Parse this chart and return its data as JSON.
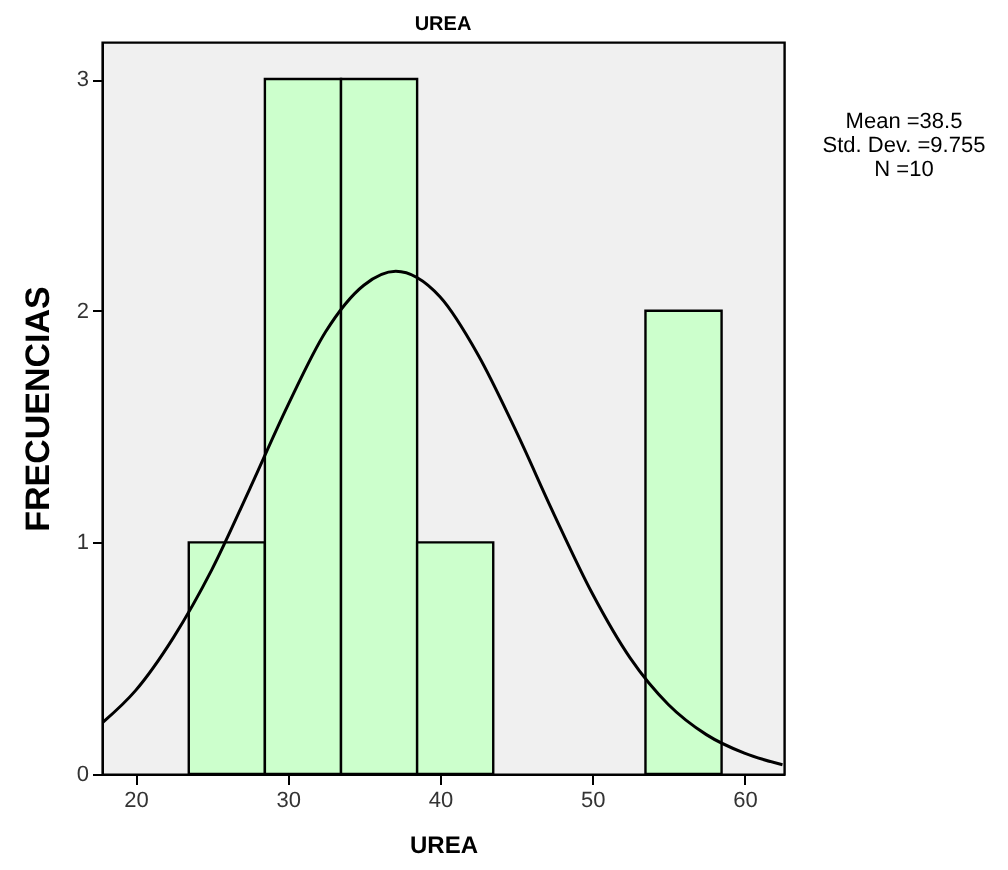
{
  "chart_data": {
    "type": "histogram",
    "title": "UREA",
    "xlabel": "UREA",
    "ylabel": "FRECUENCIAS",
    "bins": [
      23.5,
      28.5,
      33.5,
      38.5,
      43.5,
      48.5,
      53.5,
      58.5
    ],
    "series": [
      {
        "color": "#ccffcc",
        "values": [
          1,
          3,
          3,
          1,
          0,
          0,
          2
        ]
      },
      {
        "type": "line",
        "color": "#000000",
        "x": [
          17.8,
          20,
          22.5,
          25,
          27.5,
          30,
          32.5,
          35,
          37.1,
          40,
          42.5,
          45,
          47.5,
          50,
          52.5,
          55,
          57.5,
          60,
          62.5
        ],
        "values": [
          0.22,
          0.36,
          0.59,
          0.88,
          1.23,
          1.59,
          1.91,
          2.11,
          2.17,
          2.06,
          1.81,
          1.48,
          1.12,
          0.78,
          0.5,
          0.3,
          0.17,
          0.09,
          0.04
        ]
      }
    ],
    "xlim": [
      17.8,
      62.6
    ],
    "xticks": [
      20,
      30,
      40,
      50,
      60
    ],
    "ylim": [
      0,
      3.16
    ],
    "yticks": [
      0,
      1,
      2,
      3
    ],
    "grid": false,
    "annotations": [
      "Mean =38.5",
      "Std. Dev. =9.755",
      "N =10"
    ]
  }
}
